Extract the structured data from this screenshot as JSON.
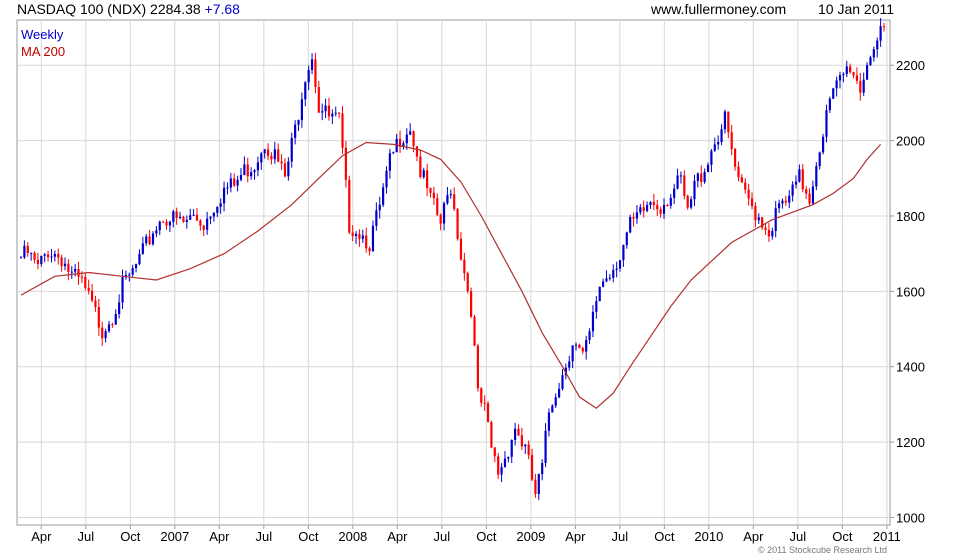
{
  "header": {
    "instrument": "NASDAQ 100 (NDX)",
    "price": "2284.38",
    "change": "+7.68",
    "website": "www.fullermoney.com",
    "date": "10 Jan 2011"
  },
  "legend": {
    "series1": "Weekly",
    "series2": "MA 200"
  },
  "copyright": "© 2011 Stockcube Research Ltd",
  "colors": {
    "up": "#0000cc",
    "down": "#ff0000",
    "ma": "#b03030",
    "grid": "#d8d8d8"
  },
  "chart_data": {
    "type": "candlestick",
    "y_ticks": [
      1000,
      1200,
      1400,
      1600,
      1800,
      2000,
      2200
    ],
    "ylim": [
      980,
      2320
    ],
    "x_ticks": [
      "Apr",
      "Jul",
      "Oct",
      "2007",
      "Apr",
      "Jul",
      "Oct",
      "2008",
      "Apr",
      "Jul",
      "Oct",
      "2009",
      "Apr",
      "Jul",
      "Oct",
      "2010",
      "Apr",
      "Jul",
      "Oct",
      "2011"
    ],
    "grid": true,
    "y_axis_side": "right",
    "close_series": [
      [
        0,
        1690
      ],
      [
        2,
        1700
      ],
      [
        5,
        1660
      ],
      [
        8,
        1710
      ],
      [
        12,
        1690
      ],
      [
        15,
        1640
      ],
      [
        18,
        1620
      ],
      [
        21,
        1560
      ],
      [
        24,
        1500
      ],
      [
        27,
        1540
      ],
      [
        30,
        1610
      ],
      [
        33,
        1650
      ],
      [
        36,
        1700
      ],
      [
        39,
        1760
      ],
      [
        42,
        1800
      ],
      [
        45,
        1790
      ],
      [
        48,
        1780
      ],
      [
        51,
        1800
      ],
      [
        54,
        1780
      ],
      [
        57,
        1830
      ],
      [
        60,
        1870
      ],
      [
        63,
        1880
      ],
      [
        66,
        1920
      ],
      [
        69,
        1940
      ],
      [
        72,
        2000
      ],
      [
        75,
        1960
      ],
      [
        78,
        1900
      ],
      [
        81,
        2030
      ],
      [
        84,
        2180
      ],
      [
        86,
        2230
      ],
      [
        88,
        2090
      ],
      [
        91,
        2060
      ],
      [
        94,
        2050
      ],
      [
        97,
        1780
      ],
      [
        100,
        1760
      ],
      [
        103,
        1730
      ],
      [
        106,
        1820
      ],
      [
        109,
        1940
      ],
      [
        112,
        2010
      ],
      [
        115,
        2040
      ],
      [
        118,
        1920
      ],
      [
        121,
        1840
      ],
      [
        124,
        1780
      ],
      [
        127,
        1880
      ],
      [
        130,
        1700
      ],
      [
        133,
        1560
      ],
      [
        135,
        1320
      ],
      [
        137,
        1280
      ],
      [
        139,
        1180
      ],
      [
        141,
        1120
      ],
      [
        143,
        1160
      ],
      [
        146,
        1240
      ],
      [
        149,
        1180
      ],
      [
        152,
        1060
      ],
      [
        154,
        1130
      ],
      [
        156,
        1280
      ],
      [
        158,
        1340
      ],
      [
        160,
        1380
      ],
      [
        163,
        1470
      ],
      [
        166,
        1420
      ],
      [
        168,
        1480
      ],
      [
        171,
        1620
      ],
      [
        174,
        1650
      ],
      [
        177,
        1700
      ],
      [
        180,
        1770
      ],
      [
        183,
        1800
      ],
      [
        186,
        1840
      ],
      [
        189,
        1830
      ],
      [
        192,
        1860
      ],
      [
        195,
        1890
      ],
      [
        197,
        1800
      ],
      [
        199,
        1880
      ],
      [
        202,
        1930
      ],
      [
        205,
        2000
      ],
      [
        208,
        2050
      ],
      [
        210,
        1970
      ],
      [
        212,
        1880
      ],
      [
        215,
        1840
      ],
      [
        218,
        1800
      ],
      [
        221,
        1760
      ],
      [
        224,
        1820
      ],
      [
        227,
        1840
      ],
      [
        230,
        1900
      ],
      [
        233,
        1850
      ],
      [
        236,
        1990
      ],
      [
        239,
        2100
      ],
      [
        242,
        2160
      ],
      [
        245,
        2200
      ],
      [
        248,
        2140
      ],
      [
        251,
        2240
      ],
      [
        254,
        2276
      ]
    ],
    "ma200": [
      [
        0,
        1590
      ],
      [
        10,
        1640
      ],
      [
        20,
        1650
      ],
      [
        30,
        1640
      ],
      [
        40,
        1630
      ],
      [
        50,
        1660
      ],
      [
        60,
        1700
      ],
      [
        70,
        1760
      ],
      [
        80,
        1830
      ],
      [
        88,
        1900
      ],
      [
        95,
        1960
      ],
      [
        102,
        1995
      ],
      [
        110,
        1990
      ],
      [
        118,
        1975
      ],
      [
        124,
        1950
      ],
      [
        130,
        1890
      ],
      [
        136,
        1800
      ],
      [
        142,
        1700
      ],
      [
        148,
        1600
      ],
      [
        154,
        1490
      ],
      [
        160,
        1400
      ],
      [
        165,
        1320
      ],
      [
        170,
        1290
      ],
      [
        175,
        1330
      ],
      [
        180,
        1400
      ],
      [
        186,
        1480
      ],
      [
        192,
        1560
      ],
      [
        198,
        1630
      ],
      [
        204,
        1680
      ],
      [
        210,
        1730
      ],
      [
        216,
        1760
      ],
      [
        222,
        1790
      ],
      [
        228,
        1810
      ],
      [
        234,
        1830
      ],
      [
        240,
        1860
      ],
      [
        246,
        1900
      ],
      [
        250,
        1950
      ],
      [
        254,
        1990
      ]
    ]
  }
}
